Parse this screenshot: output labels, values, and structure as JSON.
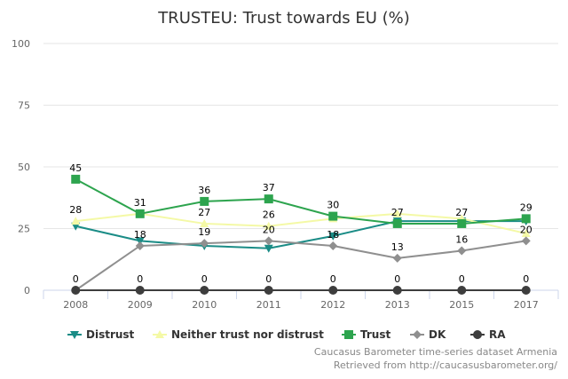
{
  "chart_data": {
    "type": "line",
    "title": "TRUSTEU: Trust towards EU (%)",
    "categories": [
      "2008",
      "2009",
      "2010",
      "2011",
      "2012",
      "2013",
      "2015",
      "2017"
    ],
    "ylim": [
      0,
      100
    ],
    "yticks": [
      "0",
      "25",
      "50",
      "75",
      "100"
    ],
    "grid": true,
    "legend": "bottom",
    "series": [
      {
        "name": "Distrust",
        "color": "#1a8c86",
        "marker": "triangle-down",
        "values": [
          26,
          20,
          18,
          17,
          22,
          28,
          28,
          28
        ],
        "labels": [
          null,
          null,
          null,
          null,
          null,
          null,
          null,
          null
        ]
      },
      {
        "name": "Neither trust nor distrust",
        "color": "#f4f9a6",
        "marker": "triangle",
        "values": [
          28,
          31,
          27,
          26,
          29,
          31,
          29,
          23
        ],
        "labels": [
          28,
          null,
          27,
          26,
          null,
          null,
          null,
          null
        ]
      },
      {
        "name": "Trust",
        "color": "#2da44e",
        "marker": "square",
        "values": [
          45,
          31,
          36,
          37,
          30,
          27,
          27,
          29
        ],
        "labels": [
          45,
          31,
          36,
          37,
          30,
          27,
          27,
          29
        ]
      },
      {
        "name": "DK",
        "color": "#8f8f8f",
        "marker": "diamond",
        "values": [
          0,
          18,
          19,
          20,
          18,
          13,
          16,
          20
        ],
        "labels": [
          null,
          18,
          19,
          20,
          18,
          13,
          16,
          20
        ]
      },
      {
        "name": "RA",
        "color": "#3d3d3d",
        "marker": "circle",
        "values": [
          0,
          0,
          0,
          0,
          0,
          0,
          0,
          0
        ],
        "labels": [
          0,
          0,
          0,
          0,
          0,
          0,
          0,
          0
        ]
      }
    ]
  },
  "credits": [
    "Caucasus Barometer time-series dataset Armenia",
    "Retrieved from http://caucasusbarometer.org/"
  ]
}
